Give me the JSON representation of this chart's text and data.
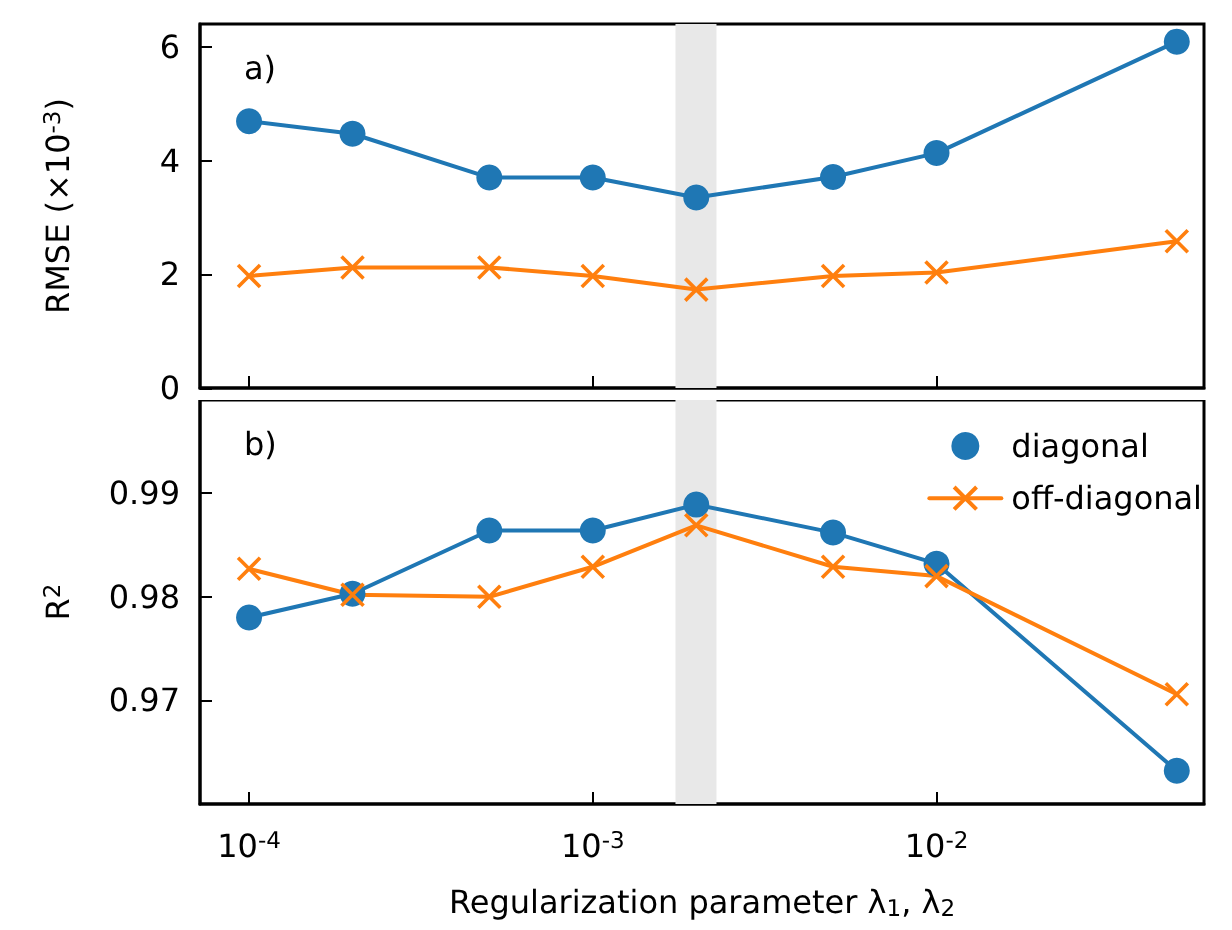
{
  "chart_data": [
    {
      "type": "line",
      "ylabel": "RMSE (×10$^{-3}$)",
      "annotations": [
        "a)"
      ],
      "x": [
        0.0001,
        0.0002,
        0.0005,
        0.001,
        0.002,
        0.005,
        0.01,
        0.05
      ],
      "series": [
        {
          "color": "#1f77b4",
          "marker": "circle",
          "values": [
            4.69,
            4.47,
            3.7,
            3.7,
            3.35,
            3.71,
            4.13,
            6.09
          ]
        },
        {
          "color": "#ff7f0e",
          "marker": "cross",
          "values": [
            1.97,
            2.12,
            2.12,
            1.97,
            1.73,
            1.97,
            2.03,
            2.58
          ]
        }
      ],
      "log": "x",
      "xlim": [
        7.2e-05,
        0.06
      ],
      "xticks": [
        {
          "value": 0.0001,
          "label": null
        },
        {
          "value": 0.001,
          "label": null
        },
        {
          "value": 0.01,
          "label": null
        }
      ],
      "ylim": [
        0,
        6.4
      ],
      "yticks": [
        0,
        2,
        4,
        6
      ],
      "tick_labels": "y",
      "legend": false,
      "bands": [
        {
          "axis": "x",
          "from": 0.00174,
          "to": 0.00229,
          "color": "#e8e8e8"
        }
      ]
    },
    {
      "type": "line",
      "ylabel": "R$^{2}$",
      "xlabel": "Regularization parameter λ$_{1}$, λ$_{2}$",
      "annotations": [
        "b)"
      ],
      "x": [
        0.0001,
        0.0002,
        0.0005,
        0.001,
        0.002,
        0.005,
        0.01,
        0.05
      ],
      "series": [
        {
          "name": "diagonal",
          "color": "#1f77b4",
          "marker": "circle",
          "values": [
            0.978,
            0.9803,
            0.9864,
            0.9864,
            0.9889,
            0.9862,
            0.9832,
            0.9632
          ]
        },
        {
          "name": "off-diagonal",
          "color": "#ff7f0e",
          "marker": "cross",
          "values": [
            0.9827,
            0.9802,
            0.98,
            0.9829,
            0.9869,
            0.9829,
            0.982,
            0.9706
          ]
        }
      ],
      "log": "x",
      "xlim": [
        7.2e-05,
        0.06
      ],
      "xticks": [
        {
          "value": 0.0001,
          "label": "10$^{-4}$"
        },
        {
          "value": 0.001,
          "label": "10$^{-3}$"
        },
        {
          "value": 0.01,
          "label": "10$^{-2}$"
        }
      ],
      "ylim": [
        0.96,
        0.999
      ],
      "yticks": [
        0.97,
        0.98,
        0.99
      ],
      "legend": "top right",
      "bands": [
        {
          "axis": "x",
          "from": 0.00174,
          "to": 0.00229,
          "color": "#e8e8e8"
        }
      ]
    }
  ]
}
